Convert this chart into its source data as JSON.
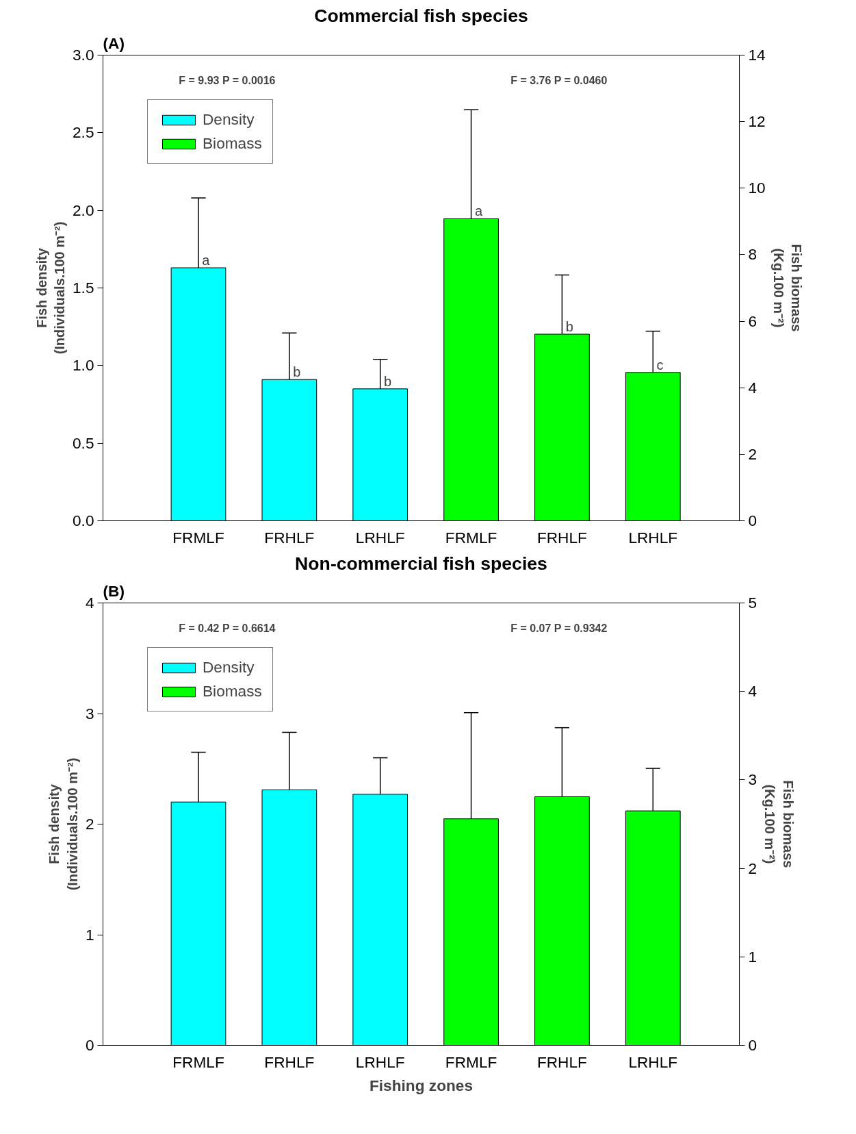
{
  "chart_data": [
    {
      "type": "bar",
      "title": "Commercial fish species",
      "ylabel": "Fish density\n(Individuals.100 m⁻²)",
      "y2label": "Fish biomass\n(Kg.100 m⁻²)",
      "annotations": [
        "(A)",
        "F = 9.93   P = 0.0016",
        "F = 3.76   P = 0.0460"
      ],
      "categories": [
        "FRMLF",
        "FRHLF",
        "LRHLF",
        "FRMLF",
        "FRHLF",
        "LRHLF"
      ],
      "series": [
        {
          "name": "Density",
          "color": "#00ffff",
          "values": [
            1.63,
            0.91,
            0.85,
            null,
            null,
            null
          ],
          "errors": [
            [
              1.63,
              2.08
            ],
            [
              0.91,
              1.21
            ],
            [
              0.85,
              1.04
            ],
            null,
            null,
            null
          ],
          "value_labels": [
            "a",
            "b",
            "b",
            null,
            null,
            null
          ]
        },
        {
          "name": "Biomass",
          "color": "#00ff00",
          "axis": "y2",
          "values": [
            null,
            null,
            null,
            9.08,
            5.61,
            4.46
          ],
          "errors": [
            null,
            null,
            null,
            [
              9.08,
              12.36
            ],
            [
              5.61,
              7.39
            ],
            [
              4.46,
              5.7
            ]
          ],
          "value_labels": [
            null,
            null,
            null,
            "a",
            "b",
            "c"
          ]
        }
      ],
      "ylim": [
        0,
        3.0
      ],
      "yticks": [
        {
          "value": 0,
          "label": "0.0"
        },
        0.5,
        {
          "value": 1,
          "label": "1.0"
        },
        1.5,
        {
          "value": 2,
          "label": "2.0"
        },
        2.5,
        {
          "value": 3,
          "label": "3.0"
        }
      ],
      "y2lim": [
        0,
        14
      ],
      "y2ticks": [
        0,
        2,
        4,
        6,
        8,
        10,
        12,
        14
      ],
      "legend": "top left",
      "grid": false
    },
    {
      "type": "bar",
      "title": "Non-commercial fish species",
      "xlabel": "Fishing zones",
      "ylabel": "Fish density\n(Individuals.100 m⁻²)",
      "y2label": "Fish biomass\n(Kg.100 m⁻²)",
      "annotations": [
        "(B)",
        "F = 0.42   P = 0.6614",
        "F = 0.07   P = 0.9342"
      ],
      "categories": [
        "FRMLF",
        "FRHLF",
        "LRHLF",
        "FRMLF",
        "FRHLF",
        "LRHLF"
      ],
      "series": [
        {
          "name": "Density",
          "color": "#00ffff",
          "values": [
            2.2,
            2.31,
            2.27,
            null,
            null,
            null
          ],
          "errors": [
            [
              2.2,
              2.65
            ],
            [
              2.31,
              2.83
            ],
            [
              2.27,
              2.6
            ],
            null,
            null,
            null
          ]
        },
        {
          "name": "Biomass",
          "color": "#00ff00",
          "axis": "y2",
          "values": [
            null,
            null,
            null,
            2.56,
            2.81,
            2.65
          ],
          "errors": [
            null,
            null,
            null,
            [
              2.56,
              3.76
            ],
            [
              2.81,
              3.59
            ],
            [
              2.65,
              3.13
            ]
          ]
        }
      ],
      "ylim": [
        0,
        4
      ],
      "yticks": [
        0,
        1,
        2,
        3,
        4
      ],
      "y2lim": [
        0,
        5
      ],
      "y2ticks": [
        0,
        1,
        2,
        3,
        4,
        5
      ],
      "legend": "top left",
      "grid": false
    }
  ]
}
